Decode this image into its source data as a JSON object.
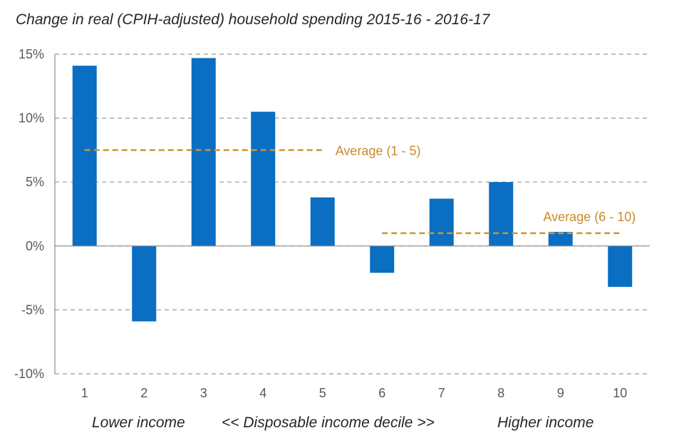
{
  "chart_data": {
    "type": "bar",
    "title": "Change in real (CPIH-adjusted) household spending 2015-16 - 2016-17",
    "categories": [
      "1",
      "2",
      "3",
      "4",
      "5",
      "6",
      "7",
      "8",
      "9",
      "10"
    ],
    "values": [
      14.1,
      -5.9,
      14.7,
      10.5,
      3.8,
      -2.1,
      3.7,
      5.0,
      1.1,
      -3.2
    ],
    "ylim": [
      -10,
      15
    ],
    "yticks": [
      15,
      10,
      5,
      0,
      -5,
      -10
    ],
    "ytick_labels": [
      "15%",
      "10%",
      "5%",
      "0%",
      "-5%",
      "-10%"
    ],
    "grid": true,
    "bar_color": "#0A6EC2",
    "average_color": "#D4922F",
    "averages": [
      {
        "label": "Average (1 - 5)",
        "value": 7.5,
        "from_category": "1",
        "to_category": "5"
      },
      {
        "label": "Average (6 - 10)",
        "value": 1.0,
        "from_category": "6",
        "to_category": "10"
      }
    ],
    "xaxis_labels": {
      "left": "Lower income",
      "center": "<<  Disposable income decile  >>",
      "right": "Higher income"
    }
  }
}
